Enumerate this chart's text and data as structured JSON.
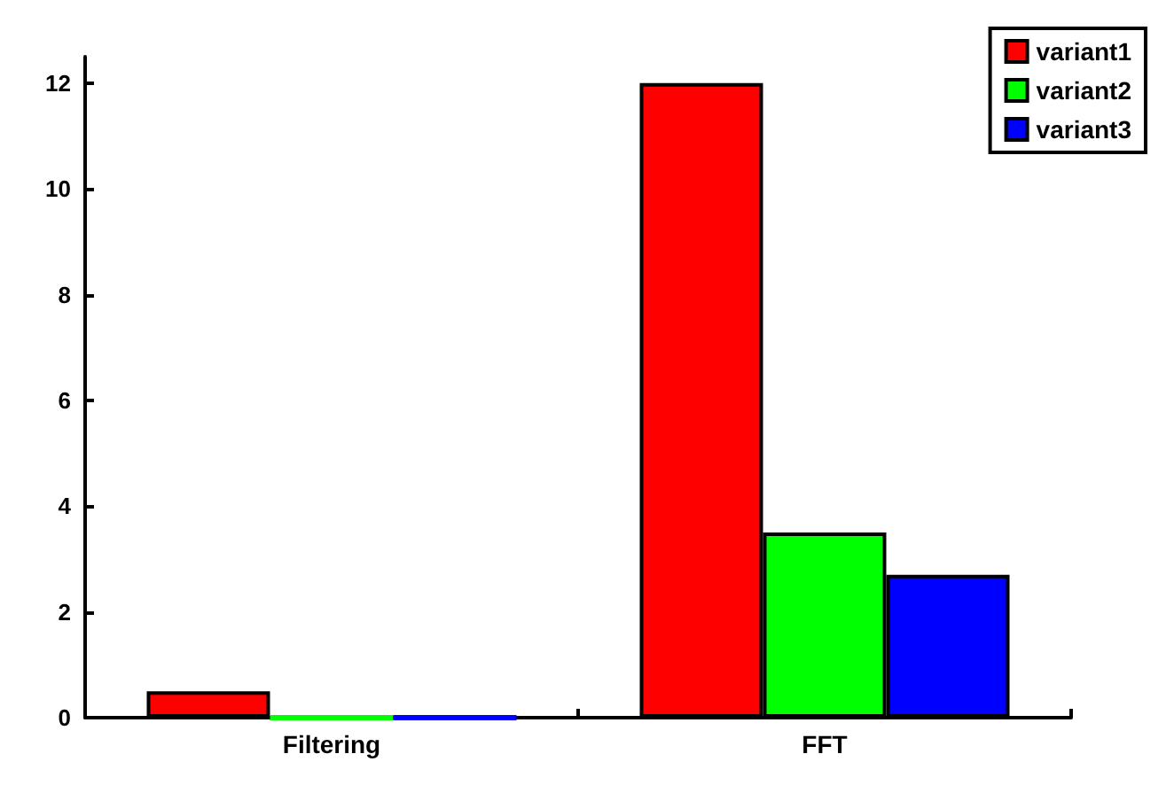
{
  "chart_data": {
    "type": "bar",
    "categories": [
      "Filtering",
      "FFT"
    ],
    "series": [
      {
        "name": "variant1",
        "color": "#ff0000",
        "values": [
          0.5,
          12
        ]
      },
      {
        "name": "variant2",
        "color": "#00ff00",
        "values": [
          0,
          3.5
        ]
      },
      {
        "name": "variant3",
        "color": "#0000ff",
        "values": [
          0,
          2.7
        ]
      }
    ],
    "ylim": [
      0,
      12.5
    ],
    "yticks": [
      0,
      2,
      4,
      6,
      8,
      10,
      12
    ],
    "grid": false,
    "legend": "top right"
  }
}
